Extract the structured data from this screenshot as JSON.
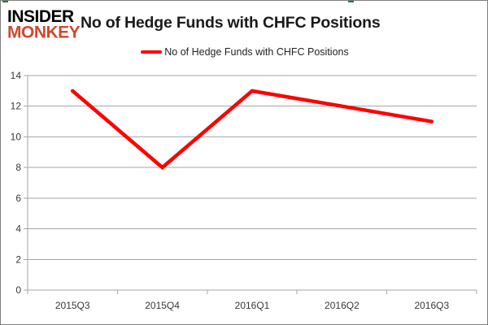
{
  "logo": {
    "line1": "INSIDER",
    "line2": "MONKEY"
  },
  "header": {
    "title": "No of Hedge Funds with CHFC Positions"
  },
  "legend": {
    "label": "No of Hedge Funds with CHFC Positions"
  },
  "colors": {
    "series": "#ff0000",
    "logo_accent": "#d0492b",
    "grid": "#a6a6a6",
    "axis": "#a6a6a6",
    "tick_text": "#383838",
    "selection_mark_green": "#1e7e34"
  },
  "chart_data": {
    "type": "line",
    "title": "No of Hedge Funds with CHFC Positions",
    "categories": [
      "2015Q3",
      "2015Q4",
      "2016Q1",
      "2016Q2",
      "2016Q3"
    ],
    "series": [
      {
        "name": "No of Hedge Funds with CHFC Positions",
        "values": [
          13,
          8,
          13,
          12,
          11
        ]
      }
    ],
    "xlabel": "",
    "ylabel": "",
    "ylim": [
      0,
      14
    ],
    "y_ticks": [
      0,
      2,
      4,
      6,
      8,
      10,
      12,
      14
    ],
    "grid": true,
    "legend_position": "top",
    "markers": false
  }
}
